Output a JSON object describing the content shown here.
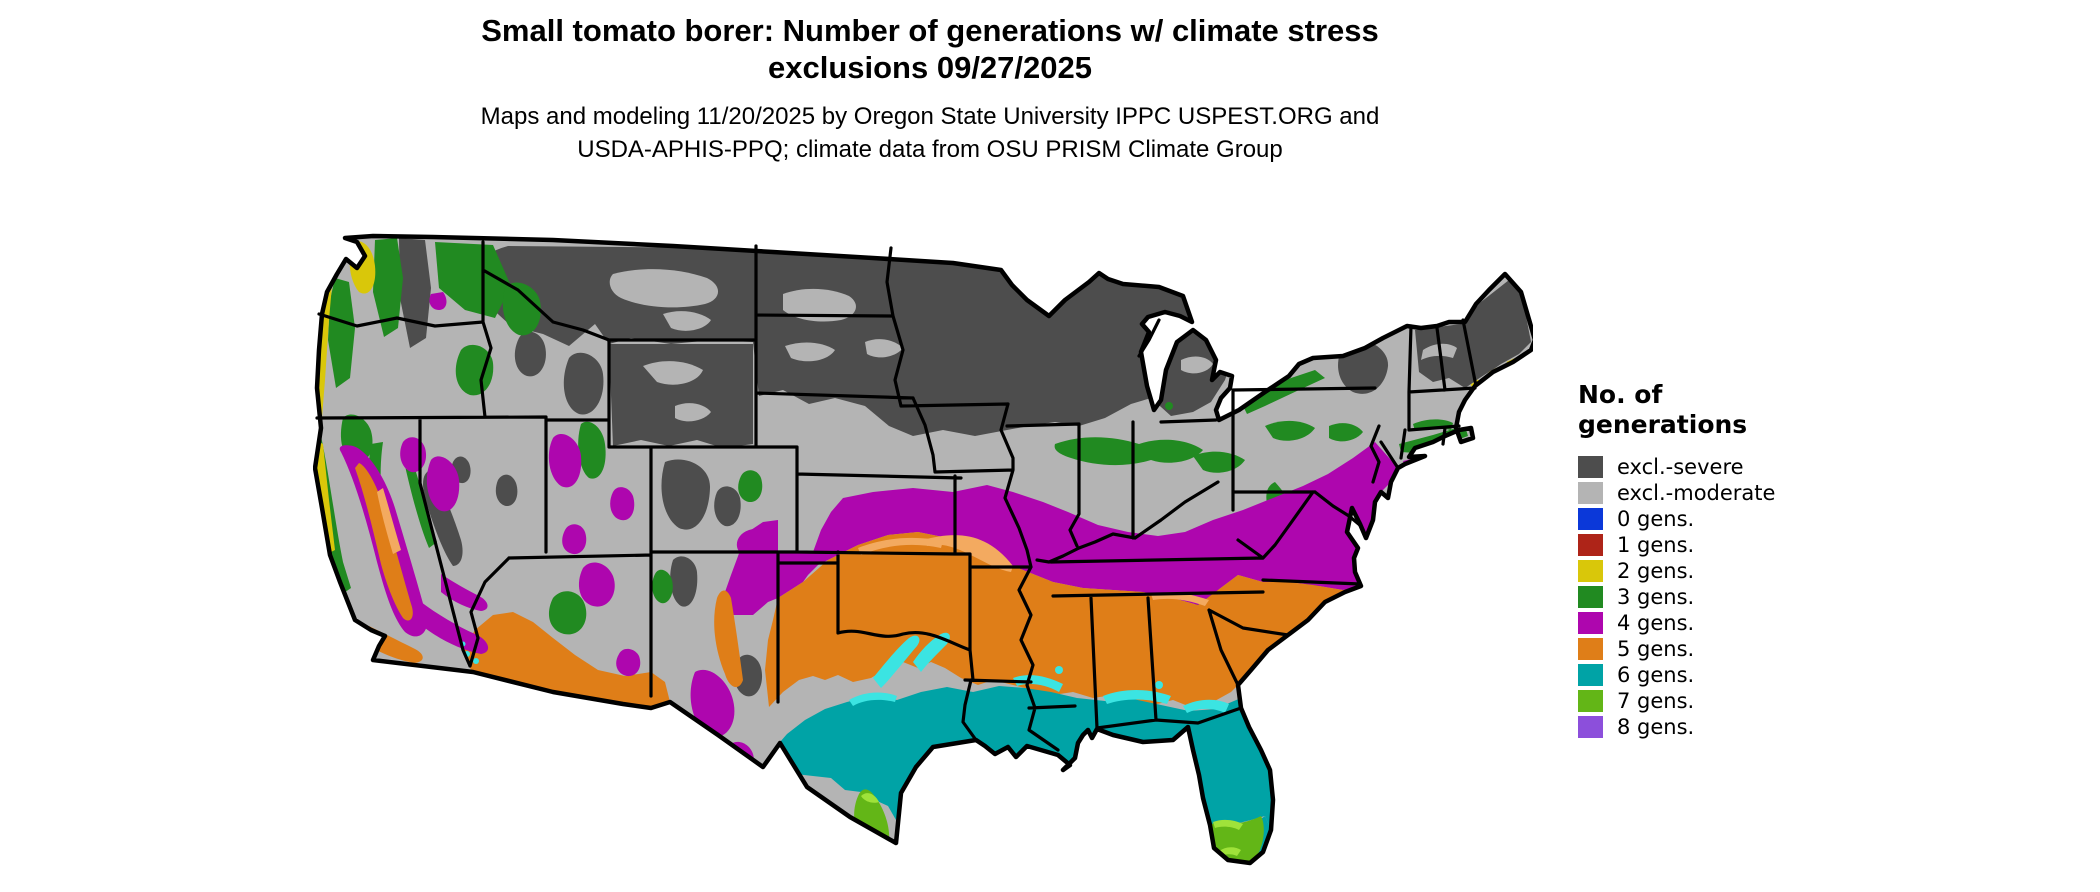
{
  "header": {
    "title": "Small tomato borer: Number of generations w/ climate stress\nexclusions 09/27/2025",
    "subtitle": "Maps and modeling 11/20/2025 by Oregon State University IPPC USPEST.ORG and\nUSDA-APHIS-PPQ; climate data from OSU PRISM Climate Group"
  },
  "legend": {
    "title": "No. of\ngenerations",
    "items": [
      {
        "label": "excl.-severe",
        "color": "#4D4D4D"
      },
      {
        "label": "excl.-moderate",
        "color": "#B4B4B4"
      },
      {
        "label": "0 gens.",
        "color": "#0B38D9"
      },
      {
        "label": "1 gens.",
        "color": "#AE2418"
      },
      {
        "label": "2 gens.",
        "color": "#D9C70A"
      },
      {
        "label": "3 gens.",
        "color": "#218A21"
      },
      {
        "label": "4 gens.",
        "color": "#AE06AE"
      },
      {
        "label": "5 gens.",
        "color": "#DF7E18"
      },
      {
        "label": "6 gens.",
        "color": "#00A3A6"
      },
      {
        "label": "7 gens.",
        "color": "#63B617"
      },
      {
        "label": "8 gens.",
        "color": "#8C4FDB"
      }
    ]
  },
  "map": {
    "description": "Continental US raster map of generations with climate stress exclusions",
    "class_colors": {
      "excl_severe": "#4D4D4D",
      "excl_moderate": "#B4B4B4",
      "g0": "#0B38D9",
      "g1": "#AE2418",
      "g2": "#D9C70A",
      "g3": "#218A21",
      "g4": "#AE06AE",
      "g5": "#DF7E18",
      "g6": "#00A3A6",
      "g7": "#63B617",
      "g8": "#8C4FDB",
      "fringe_cyan": "#3BE4E2",
      "fringe_orange": "#F3AA60",
      "fringe_lime": "#9FE23A",
      "outline": "#000000",
      "water": "#FFFFFF"
    }
  }
}
